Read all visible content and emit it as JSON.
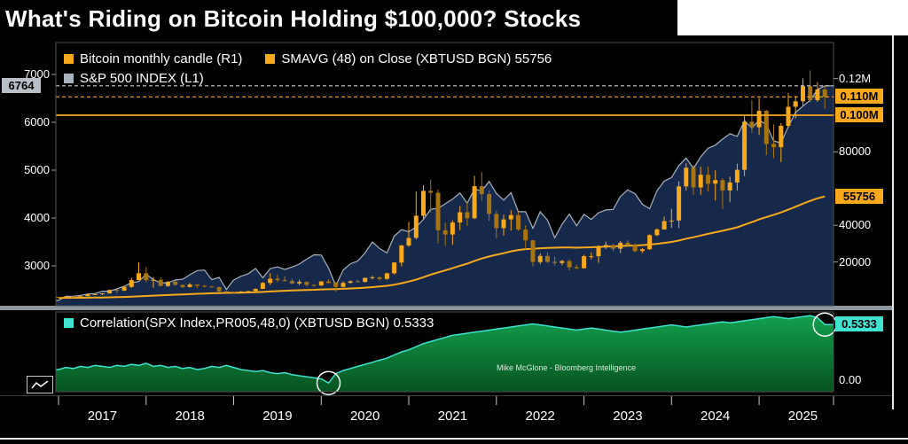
{
  "title": "What's Riding on Bitcoin Holding $100,000? Stocks",
  "watermark": "Mike McGlone - Bloomberg Intelligence",
  "years": [
    "2017",
    "2018",
    "2019",
    "2020",
    "2021",
    "2022",
    "2023",
    "2024",
    "2025"
  ],
  "colors": {
    "orange": "#F8A81B",
    "gray": "#A9B2BD",
    "cyan": "#3FE3CF",
    "navy_fill": "#16294B",
    "green_top": "#12A04E",
    "green_bottom": "#07531F",
    "candle_up": "#F8A81B",
    "candle_down": "#A87410"
  },
  "legend": {
    "main_row1": [
      {
        "label": "Bitcoin monthly candle (R1)",
        "color": "#F8A81B"
      },
      {
        "label": "SMAVG (48) on Close (XBTUSD BGN) 55756",
        "color": "#F8A81B"
      }
    ],
    "main_row2": [
      {
        "label": "S&P 500 INDEX (L1)",
        "color": "#A9B2BD"
      }
    ],
    "corr": [
      {
        "label": "Correlation(SPX Index,PR005,48,0) (XBTUSD BGN) 0.5333",
        "color": "#3FE3CF"
      }
    ]
  },
  "chart_data": [
    {
      "type": "candlestick+line+area",
      "panel": "main",
      "x_unit": "month",
      "xlim": [
        "2017-01",
        "2025-10"
      ],
      "left_axis": {
        "range": [
          2167,
          7667
        ],
        "ticks": [
          {
            "text": "7000",
            "value": 7000
          },
          {
            "text": "6000",
            "value": 6000
          },
          {
            "text": "5000",
            "value": 5000
          },
          {
            "text": "4000",
            "value": 4000
          },
          {
            "text": "3000",
            "value": 3000
          }
        ],
        "last_box": {
          "text": "6764",
          "value": 6764
        }
      },
      "right_axis": {
        "range": [
          -3865,
          139613
        ],
        "ticks": [
          {
            "text": "0.12M",
            "value": 120000
          },
          {
            "text": "80000",
            "value": 80000
          },
          {
            "text": "40000",
            "value": 40000
          },
          {
            "text": "20000",
            "value": 20000
          }
        ],
        "boxes": [
          {
            "text": "0.110M",
            "value": 110000
          },
          {
            "text": "0.100M",
            "value": 100000
          },
          {
            "text": "55756",
            "value": 55756
          }
        ]
      },
      "hlines": [
        {
          "axis": "left",
          "value": 6764,
          "style": "dashed",
          "color": "#C9CDD4"
        },
        {
          "axis": "right",
          "value": 110000,
          "style": "dashed",
          "color": "#F8A81B"
        },
        {
          "axis": "right",
          "value": 100000,
          "style": "solid",
          "color": "#F8A81B"
        }
      ],
      "sp500_close": [
        2279,
        2364,
        2363,
        2384,
        2412,
        2423,
        2470,
        2472,
        2519,
        2575,
        2648,
        2674,
        2824,
        2714,
        2641,
        2648,
        2705,
        2718,
        2816,
        2902,
        2914,
        2712,
        2760,
        2507,
        2704,
        2784,
        2834,
        2946,
        2752,
        2942,
        2980,
        2926,
        2977,
        3038,
        3141,
        3231,
        3226,
        2954,
        2585,
        2912,
        3044,
        3100,
        3271,
        3500,
        3363,
        3270,
        3622,
        3756,
        3714,
        3811,
        3973,
        4181,
        4204,
        4298,
        4395,
        4523,
        4308,
        4605,
        4567,
        4766,
        4516,
        4374,
        4530,
        4132,
        4132,
        3785,
        4130,
        3955,
        3586,
        3872,
        4080,
        3840,
        4077,
        3970,
        4109,
        4169,
        4180,
        4450,
        4589,
        4508,
        4288,
        4194,
        4568,
        4770,
        4846,
        5096,
        5254,
        5036,
        5278,
        5460,
        5522,
        5648,
        5762,
        5705,
        6032,
        5882,
        6041,
        5955,
        5612,
        5569,
        5912,
        6205,
        6340,
        6460,
        6688,
        6764
      ],
      "btc_first_open": 970,
      "btc_close": [
        965,
        1180,
        1080,
        1350,
        2300,
        2480,
        2875,
        4735,
        4360,
        6450,
        10100,
        13850,
        10100,
        10300,
        6930,
        9240,
        7500,
        6400,
        7730,
        7030,
        6600,
        6300,
        4020,
        3740,
        3460,
        3850,
        4100,
        5320,
        8560,
        10800,
        10080,
        9600,
        8300,
        9150,
        7550,
        7190,
        9350,
        8550,
        6440,
        8620,
        9450,
        9140,
        11350,
        11650,
        10780,
        13800,
        19700,
        29000,
        33100,
        45200,
        58800,
        57750,
        37300,
        35000,
        41500,
        47100,
        43800,
        61300,
        57000,
        46200,
        38480,
        43200,
        45540,
        37650,
        31790,
        19985,
        23300,
        20050,
        19430,
        20490,
        17168,
        16540,
        23130,
        23140,
        28480,
        29230,
        27220,
        30480,
        29230,
        25940,
        26960,
        34650,
        37720,
        42280,
        42580,
        61200,
        71330,
        60640,
        67530,
        62670,
        64620,
        58970,
        63330,
        70220,
        96440,
        93430,
        102400,
        84350,
        82550,
        94210,
        104600,
        107600,
        115800,
        108200,
        114000,
        110000
      ],
      "btc_high": [
        1190,
        1220,
        1290,
        1390,
        2780,
        2980,
        2940,
        4980,
        4980,
        6480,
        11400,
        19800,
        17200,
        11790,
        11700,
        9760,
        9990,
        7750,
        8480,
        7760,
        7410,
        6970,
        6540,
        4300,
        4060,
        4190,
        4290,
        5620,
        9070,
        13880,
        13130,
        12320,
        10890,
        10350,
        9500,
        7760,
        9570,
        10500,
        9190,
        9460,
        10070,
        10380,
        11450,
        12470,
        12050,
        14100,
        19860,
        29300,
        41950,
        58350,
        61800,
        64900,
        59500,
        41330,
        42600,
        50500,
        52920,
        66990,
        69000,
        59040,
        47980,
        45820,
        48200,
        47440,
        40020,
        31980,
        24670,
        25210,
        22800,
        21090,
        21480,
        18390,
        23960,
        25250,
        29180,
        31050,
        29820,
        31400,
        31800,
        30180,
        27480,
        35000,
        38400,
        44700,
        48970,
        63930,
        73800,
        72780,
        71950,
        71990,
        69980,
        65600,
        66500,
        73620,
        99800,
        108270,
        109360,
        102800,
        95000,
        95770,
        112000,
        110530,
        120000,
        124500,
        118000,
        116000
      ],
      "btc_low": [
        780,
        920,
        940,
        1060,
        1340,
        2140,
        1860,
        2840,
        2980,
        4100,
        5880,
        10800,
        9000,
        6000,
        6600,
        6430,
        7040,
        5780,
        6100,
        5880,
        6120,
        6050,
        3620,
        3150,
        3350,
        3330,
        3790,
        4050,
        5270,
        7450,
        9080,
        9230,
        7700,
        7290,
        6520,
        6430,
        6860,
        8400,
        3850,
        6150,
        8100,
        8830,
        8900,
        10520,
        9820,
        10380,
        13200,
        17570,
        28130,
        32300,
        43000,
        46930,
        30000,
        28800,
        29300,
        37330,
        39600,
        43280,
        53250,
        42330,
        32950,
        34320,
        37160,
        37000,
        26700,
        17600,
        18780,
        19520,
        18130,
        18190,
        15480,
        16250,
        16490,
        21440,
        19550,
        26940,
        25810,
        24800,
        28860,
        25350,
        24900,
        26530,
        34100,
        38850,
        38500,
        38520,
        59000,
        56500,
        56550,
        58400,
        53500,
        49000,
        52550,
        58900,
        66840,
        90500,
        89160,
        78260,
        76600,
        74420,
        93300,
        98200,
        105100,
        107300,
        107250,
        103500
      ],
      "smavg48": [
        420,
        440,
        460,
        490,
        530,
        580,
        640,
        720,
        800,
        900,
        1050,
        1250,
        1450,
        1650,
        1800,
        1980,
        2150,
        2300,
        2480,
        2650,
        2800,
        2950,
        3050,
        3120,
        3200,
        3280,
        3380,
        3500,
        3680,
        3900,
        4100,
        4280,
        4430,
        4600,
        4730,
        4850,
        5000,
        5120,
        5200,
        5350,
        5550,
        5750,
        6000,
        6300,
        6600,
        7000,
        7600,
        8400,
        9300,
        10400,
        11700,
        13100,
        14300,
        15400,
        16600,
        17900,
        19100,
        20600,
        21900,
        23000,
        23900,
        24800,
        25800,
        26500,
        27000,
        27200,
        27500,
        27700,
        27800,
        27900,
        27900,
        27800,
        27900,
        28000,
        28200,
        28400,
        28500,
        28700,
        28900,
        29000,
        29200,
        29500,
        29900,
        30400,
        30900,
        31700,
        32700,
        33500,
        34400,
        35300,
        36200,
        37000,
        37900,
        38900,
        40300,
        41700,
        43200,
        44500,
        45700,
        47000,
        48500,
        50100,
        51800,
        53300,
        54700,
        55756
      ]
    },
    {
      "type": "area",
      "panel": "correlation",
      "range": [
        -0.114,
        0.655
      ],
      "ticks": [
        {
          "text": "0.00",
          "value": 0
        }
      ],
      "box": {
        "text": "0.5333",
        "value": 0.5333
      },
      "circles": [
        {
          "month": "2020-02",
          "index": 37
        },
        {
          "month": "2025-10",
          "index": 105
        }
      ],
      "values": [
        0.1,
        0.12,
        0.11,
        0.13,
        0.12,
        0.14,
        0.13,
        0.12,
        0.14,
        0.13,
        0.15,
        0.14,
        0.16,
        0.13,
        0.14,
        0.12,
        0.13,
        0.11,
        0.12,
        0.1,
        0.11,
        0.13,
        0.12,
        0.14,
        0.12,
        0.1,
        0.09,
        0.08,
        0.09,
        0.07,
        0.06,
        0.07,
        0.05,
        0.04,
        0.03,
        0.02,
        0.01,
        -0.03,
        0.06,
        0.09,
        0.11,
        0.13,
        0.15,
        0.17,
        0.19,
        0.21,
        0.24,
        0.27,
        0.29,
        0.32,
        0.35,
        0.37,
        0.39,
        0.41,
        0.43,
        0.44,
        0.45,
        0.46,
        0.47,
        0.48,
        0.49,
        0.5,
        0.51,
        0.52,
        0.53,
        0.54,
        0.53,
        0.52,
        0.51,
        0.5,
        0.49,
        0.48,
        0.49,
        0.5,
        0.49,
        0.48,
        0.47,
        0.46,
        0.47,
        0.48,
        0.49,
        0.5,
        0.51,
        0.52,
        0.53,
        0.52,
        0.51,
        0.52,
        0.53,
        0.54,
        0.55,
        0.56,
        0.55,
        0.56,
        0.57,
        0.58,
        0.59,
        0.6,
        0.61,
        0.6,
        0.59,
        0.6,
        0.61,
        0.62,
        0.6,
        0.5333
      ]
    }
  ]
}
